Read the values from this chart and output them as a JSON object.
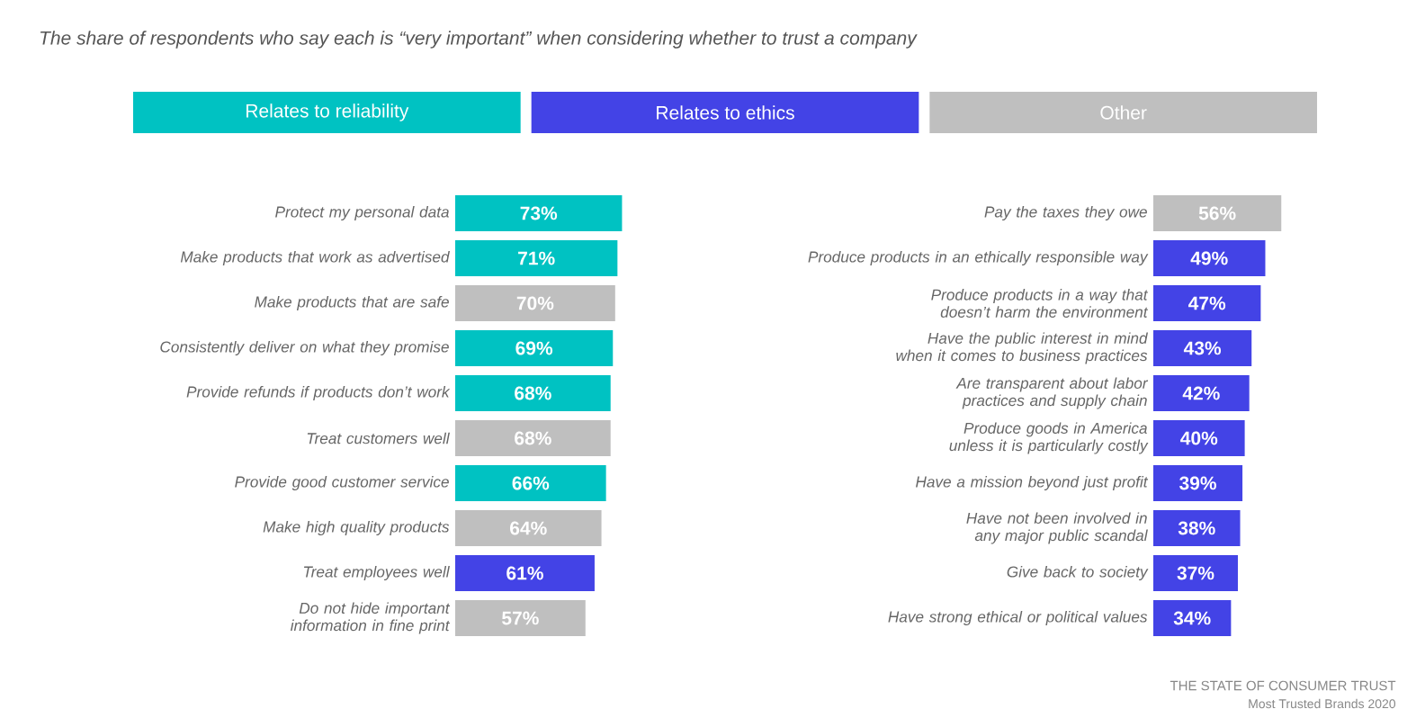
{
  "chart_data": [
    {
      "type": "bar",
      "orientation": "horizontal",
      "stacked": true,
      "title": "The share of respondents who say each is “very important” when considering whether to trust a company",
      "categories": [
        "Protect my personal data",
        "Make products that work as advertised",
        "Make products that are safe",
        "Consistently deliver on what they promise",
        "Provide refunds if products don’t work",
        "Treat customers well",
        "Provide good customer service",
        "Make high quality products",
        "Treat employees well",
        "Do not hide important information in fine print"
      ],
      "series": [
        {
          "name": "Relates to reliability",
          "color": "#00c2c2",
          "values": [
            73,
            71,
            null,
            69,
            68,
            null,
            66,
            null,
            null,
            null
          ],
          "value_labels": [
            "73%",
            "71%",
            null,
            "69%",
            "68%",
            null,
            "66%",
            null,
            null,
            null
          ]
        },
        {
          "name": "Relates to ethics",
          "color": "#4343e6",
          "values": [
            null,
            null,
            null,
            null,
            null,
            null,
            null,
            null,
            61,
            null
          ],
          "value_labels": [
            null,
            null,
            null,
            null,
            null,
            null,
            null,
            null,
            "61%",
            null
          ]
        },
        {
          "name": "Other",
          "color": "#bfbfbf",
          "values": [
            null,
            null,
            70,
            null,
            null,
            68,
            null,
            64,
            null,
            57
          ],
          "value_labels": [
            null,
            null,
            "70%",
            null,
            null,
            "68%",
            null,
            "64%",
            null,
            "57%"
          ]
        }
      ],
      "tick_labels": "y",
      "legend": "top"
    },
    {
      "type": "bar",
      "orientation": "horizontal",
      "categories": [
        "Pay the taxes they owe",
        "Produce products in an ethically responsible way",
        "Produce products in a way that doesn’t harm the environment",
        "Have the public interest in mind when it comes to business practices",
        "Are transparent about labor practices and supply chain",
        "Produce goods in America unless it is particularly costly",
        "Have a mission beyond just profit",
        "Have not been involved in any major public scandal",
        "Give back to society",
        "Have strong ethical or political values"
      ],
      "values": [
        56,
        49,
        47,
        43,
        42,
        40,
        39,
        38,
        37,
        34
      ],
      "value_labels": [
        "56%",
        "49%",
        "47%",
        "43%",
        "42%",
        "40%",
        "39%",
        "38%",
        "37%",
        "34%"
      ],
      "colors": [
        "#bfbfbf",
        "#4343e6",
        "#4343e6",
        "#4343e6",
        "#4343e6",
        "#4343e6",
        "#4343e6",
        "#4343e6",
        "#4343e6",
        "#4343e6"
      ],
      "tick_labels": "y",
      "annotations": [
        "THE STATE OF CONSUMER TRUST",
        "Most Trusted Brands 2020"
      ]
    }
  ]
}
